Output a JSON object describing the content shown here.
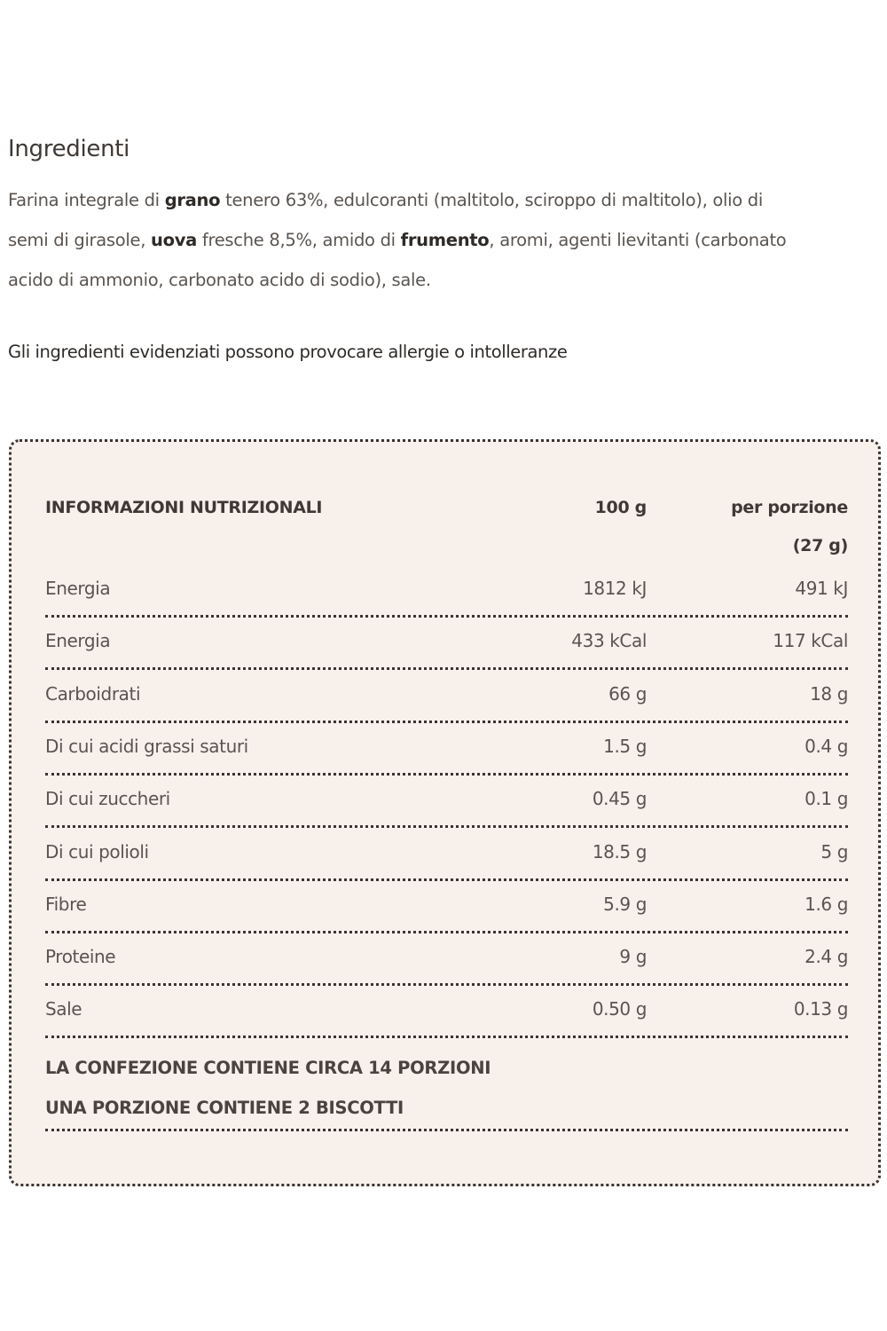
{
  "ingredients": {
    "title": "Ingredienti",
    "lines": [
      [
        {
          "t": "Farina integrale di ",
          "b": false
        },
        {
          "t": "grano",
          "b": true
        },
        {
          "t": " tenero 63%, edulcoranti (maltitolo, sciroppo di maltitolo), olio di",
          "b": false
        }
      ],
      [
        {
          "t": "semi di girasole, ",
          "b": false
        },
        {
          "t": "uova",
          "b": true
        },
        {
          "t": " fresche 8,5%, amido di ",
          "b": false
        },
        {
          "t": "frumento",
          "b": true
        },
        {
          "t": ", aromi, agenti lievitanti (carbonato",
          "b": false
        }
      ],
      [
        {
          "t": "acido di ammonio, carbonato acido di sodio), sale.",
          "b": false
        }
      ]
    ],
    "allergy_note": "Gli ingredienti evidenziati possono provocare allergie o intolleranze"
  },
  "nutrition": {
    "header": {
      "label": "INFORMAZIONI NUTRIZIONALI",
      "col1": "100 g",
      "col2": "per porzione",
      "col2_sub": "(27 g)"
    },
    "rows": [
      {
        "name": "Energia",
        "per100": "1812 kJ",
        "portion": "491 kJ"
      },
      {
        "name": "Energia",
        "per100": "433 kCal",
        "portion": "117 kCal"
      },
      {
        "name": "Carboidrati",
        "per100": "66 g",
        "portion": "18 g"
      },
      {
        "name": "Di cui acidi grassi saturi",
        "per100": "1.5 g",
        "portion": "0.4 g"
      },
      {
        "name": "Di cui zuccheri",
        "per100": "0.45 g",
        "portion": "0.1 g"
      },
      {
        "name": "Di cui polioli",
        "per100": "18.5 g",
        "portion": "5 g"
      },
      {
        "name": "Fibre",
        "per100": "5.9 g",
        "portion": "1.6 g"
      },
      {
        "name": "Proteine",
        "per100": "9 g",
        "portion": "2.4 g"
      },
      {
        "name": "Sale",
        "per100": "0.50 g",
        "portion": "0.13 g"
      }
    ],
    "footer": [
      "LA CONFEZIONE CONTIENE CIRCA 14 PORZIONI",
      "UNA PORZIONE CONTIENE 2 BISCOTTI"
    ]
  }
}
